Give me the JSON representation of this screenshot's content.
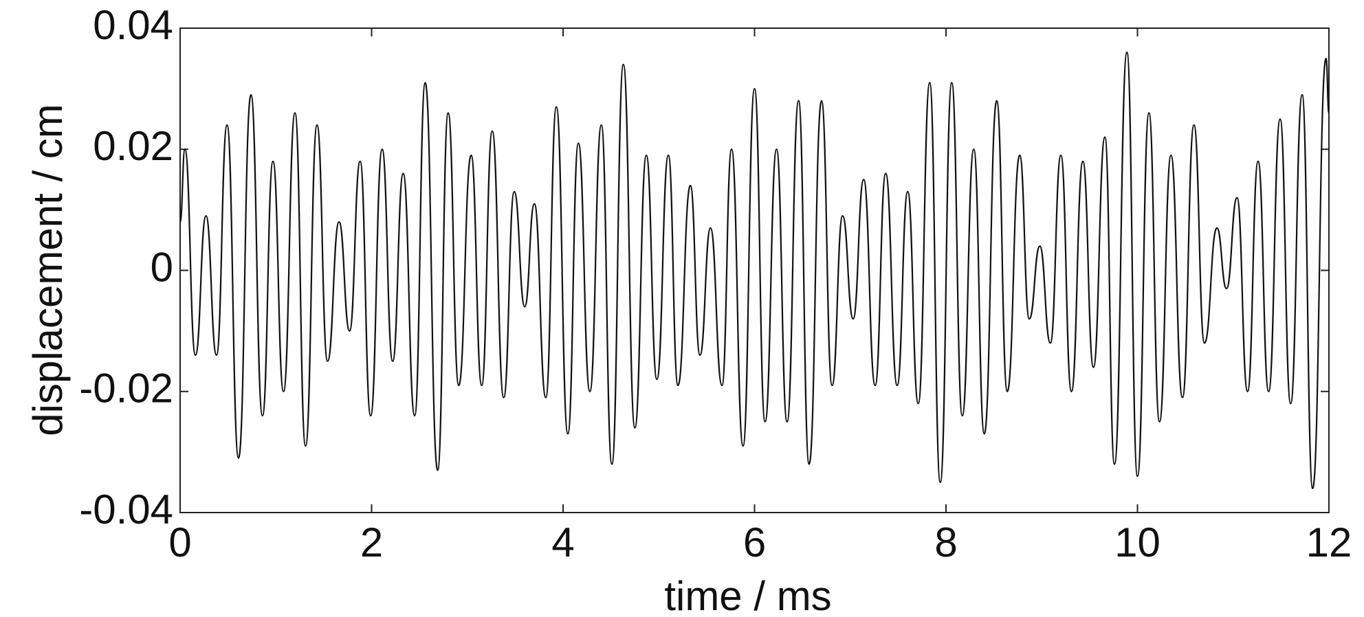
{
  "chart_data": {
    "type": "line",
    "x_label": "time / ms",
    "y_label": "displacement / cm",
    "color": "#111111",
    "xlim": [
      0,
      12
    ],
    "xticks": [
      0,
      2,
      4,
      6,
      8,
      10,
      12
    ],
    "ylim": [
      -0.04,
      0.04
    ],
    "yticks": [
      -0.04,
      -0.02,
      0,
      0.02,
      0.04
    ],
    "x": [
      0.0,
      0.05,
      0.16,
      0.27,
      0.38,
      0.49,
      0.61,
      0.74,
      0.86,
      0.97,
      1.08,
      1.2,
      1.31,
      1.43,
      1.54,
      1.66,
      1.77,
      1.88,
      1.99,
      2.11,
      2.22,
      2.33,
      2.45,
      2.56,
      2.69,
      2.8,
      2.91,
      3.04,
      3.15,
      3.26,
      3.38,
      3.49,
      3.6,
      3.7,
      3.82,
      3.93,
      4.05,
      4.16,
      4.28,
      4.4,
      4.51,
      4.63,
      4.75,
      4.87,
      4.98,
      5.1,
      5.2,
      5.33,
      5.43,
      5.54,
      5.66,
      5.76,
      5.88,
      6.0,
      6.11,
      6.23,
      6.34,
      6.46,
      6.57,
      6.7,
      6.81,
      6.92,
      7.03,
      7.14,
      7.26,
      7.37,
      7.49,
      7.6,
      7.71,
      7.83,
      7.94,
      8.06,
      8.17,
      8.29,
      8.4,
      8.53,
      8.64,
      8.77,
      8.87,
      8.98,
      9.09,
      9.2,
      9.31,
      9.43,
      9.54,
      9.66,
      9.76,
      9.89,
      10.0,
      10.12,
      10.23,
      10.35,
      10.47,
      10.59,
      10.7,
      10.83,
      10.93,
      11.04,
      11.15,
      11.26,
      11.37,
      11.49,
      11.6,
      11.72,
      11.83,
      11.97,
      12.0
    ],
    "values": [
      0.008,
      0.02,
      -0.014,
      0.009,
      -0.014,
      0.024,
      -0.031,
      0.029,
      -0.024,
      0.018,
      -0.02,
      0.026,
      -0.029,
      0.024,
      -0.015,
      0.008,
      -0.01,
      0.018,
      -0.024,
      0.02,
      -0.015,
      0.016,
      -0.024,
      0.031,
      -0.033,
      0.026,
      -0.019,
      0.019,
      -0.019,
      0.023,
      -0.021,
      0.013,
      -0.006,
      0.011,
      -0.021,
      0.027,
      -0.027,
      0.021,
      -0.02,
      0.024,
      -0.032,
      0.034,
      -0.026,
      0.019,
      -0.018,
      0.019,
      -0.019,
      0.014,
      -0.014,
      0.007,
      -0.019,
      0.02,
      -0.029,
      0.03,
      -0.025,
      0.02,
      -0.025,
      0.028,
      -0.032,
      0.028,
      -0.019,
      0.009,
      -0.008,
      0.015,
      -0.019,
      0.016,
      -0.019,
      0.013,
      -0.022,
      0.031,
      -0.035,
      0.031,
      -0.024,
      0.02,
      -0.027,
      0.028,
      -0.02,
      0.019,
      -0.008,
      0.004,
      -0.012,
      0.019,
      -0.02,
      0.018,
      -0.016,
      0.022,
      -0.032,
      0.036,
      -0.034,
      0.026,
      -0.025,
      0.019,
      -0.021,
      0.024,
      -0.012,
      0.007,
      -0.003,
      0.012,
      -0.02,
      0.018,
      -0.02,
      0.025,
      -0.022,
      0.029,
      -0.036,
      0.035,
      0.026
    ]
  }
}
